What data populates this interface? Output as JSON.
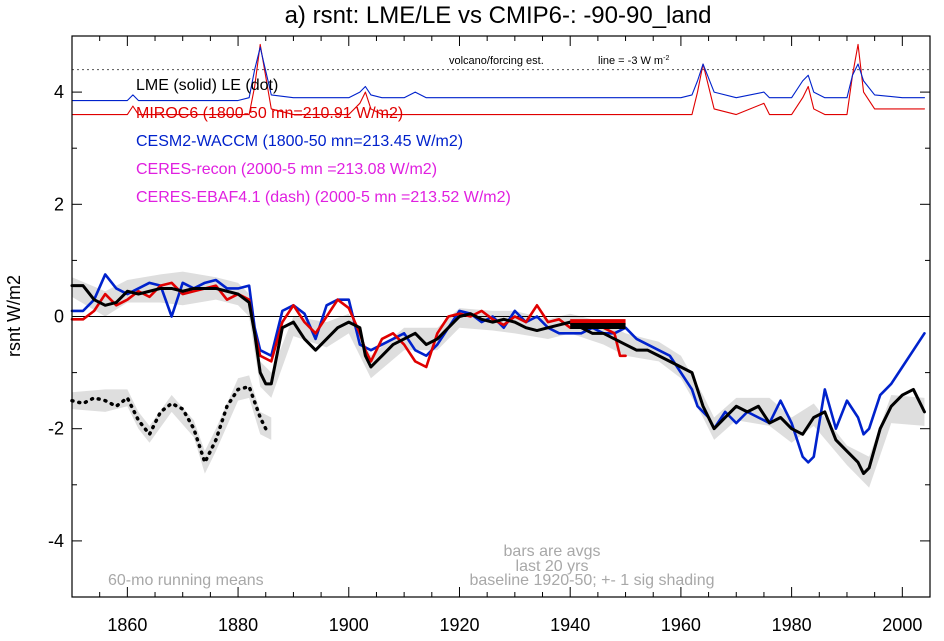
{
  "chart_data": {
    "type": "line",
    "title": "a) rsnt: LME/LE vs CMIP6-: -90-90_land",
    "ylabel": "rsnt W/m2",
    "xlabel": "",
    "xlim": [
      1850,
      2005
    ],
    "ylim": [
      -5,
      5
    ],
    "x_ticks": [
      1860,
      1880,
      1900,
      1920,
      1940,
      1960,
      1980,
      2000
    ],
    "y_ticks": [
      -4,
      -2,
      0,
      2,
      4
    ],
    "zero_line": 0,
    "reference_line": {
      "y": 4.4,
      "style": "dotted"
    },
    "legend": [
      {
        "text": "LME (solid)   LE (dot)",
        "color": "#000000"
      },
      {
        "text": "MIROC6 (1800-50 mn=210.91 W/m2)",
        "color": "#e00000"
      },
      {
        "text": "CESM2-WACCM (1800-50 mn=213.45 W/m2)",
        "color": "#0022cc"
      },
      {
        "text": "CERES-recon (2000-5 mn =213.08 W/m2)",
        "color": "#e020e0"
      },
      {
        "text": "CERES-EBAF4.1 (dash) (2000-5 mn =213.52 W/m2)",
        "color": "#e020e0"
      }
    ],
    "annotations": {
      "volcano": "volcano/forcing est.",
      "line_note": "line = -3 W m",
      "line_note_sup": "-2",
      "running": "60-mo running means",
      "bars1": "bars are avgs",
      "bars2": "last 20 yrs",
      "baseline": "baseline 1920-50; +- 1 sig shading"
    },
    "colors": {
      "lme": "#000000",
      "miroc": "#e00000",
      "cesm": "#0022cc",
      "ceres": "#e020e0",
      "shade": "#cccccc",
      "annot": "#a8a8a8"
    },
    "series": [
      {
        "name": "LME (solid)",
        "color": "#000000",
        "x": [
          1850,
          1852,
          1854,
          1856,
          1858,
          1860,
          1862,
          1864,
          1866,
          1868,
          1870,
          1872,
          1874,
          1876,
          1878,
          1880,
          1882,
          1883,
          1884,
          1885,
          1886,
          1888,
          1890,
          1892,
          1894,
          1896,
          1898,
          1900,
          1902,
          1903,
          1904,
          1906,
          1908,
          1910,
          1912,
          1914,
          1916,
          1918,
          1920,
          1922,
          1924,
          1926,
          1928,
          1930,
          1932,
          1934,
          1936,
          1938,
          1940,
          1942,
          1944,
          1946,
          1948,
          1950,
          1952,
          1954,
          1956,
          1958,
          1960,
          1962,
          1963,
          1964,
          1965,
          1966,
          1968,
          1970,
          1972,
          1974,
          1976,
          1978,
          1980,
          1982,
          1984,
          1986,
          1988,
          1990,
          1992,
          1993,
          1994,
          1996,
          1998,
          2000,
          2002,
          2004
        ],
        "y": [
          0.55,
          0.55,
          0.3,
          0.2,
          0.25,
          0.45,
          0.4,
          0.45,
          0.5,
          0.5,
          0.45,
          0.5,
          0.5,
          0.5,
          0.45,
          0.4,
          0.25,
          -0.3,
          -1.0,
          -1.2,
          -1.2,
          -0.2,
          -0.1,
          -0.4,
          -0.6,
          -0.4,
          -0.2,
          -0.1,
          -0.2,
          -0.7,
          -0.9,
          -0.7,
          -0.5,
          -0.4,
          -0.3,
          -0.5,
          -0.4,
          -0.2,
          0.0,
          0.05,
          -0.05,
          -0.1,
          -0.05,
          -0.1,
          -0.2,
          -0.25,
          -0.2,
          -0.15,
          -0.1,
          -0.2,
          -0.3,
          -0.3,
          -0.4,
          -0.5,
          -0.6,
          -0.6,
          -0.7,
          -0.8,
          -0.9,
          -1.0,
          -1.3,
          -1.6,
          -1.8,
          -2.0,
          -1.8,
          -1.6,
          -1.7,
          -1.6,
          -1.9,
          -1.8,
          -2.0,
          -2.1,
          -1.8,
          -1.7,
          -2.2,
          -2.4,
          -2.6,
          -2.8,
          -2.7,
          -2.0,
          -1.6,
          -1.4,
          -1.3,
          -1.7
        ]
      },
      {
        "name": "LE (dot)",
        "color": "#000000",
        "x": [
          1850,
          1852,
          1854,
          1856,
          1858,
          1860,
          1862,
          1864,
          1866,
          1868,
          1870,
          1872,
          1874,
          1876,
          1878,
          1880,
          1882,
          1884,
          1885
        ],
        "y": [
          -1.5,
          -1.55,
          -1.45,
          -1.5,
          -1.6,
          -1.45,
          -1.85,
          -2.1,
          -1.7,
          -1.55,
          -1.65,
          -2.0,
          -2.6,
          -2.2,
          -1.6,
          -1.3,
          -1.25,
          -1.8,
          -2.0
        ]
      },
      {
        "name": "MIROC6 (1800-50 mn=210.91 W/m2)",
        "color": "#e00000",
        "x": [
          1850,
          1852,
          1854,
          1856,
          1858,
          1860,
          1862,
          1864,
          1866,
          1868,
          1870,
          1872,
          1874,
          1876,
          1878,
          1880,
          1882,
          1883,
          1884,
          1886,
          1888,
          1890,
          1892,
          1894,
          1896,
          1898,
          1900,
          1902,
          1903,
          1904,
          1906,
          1908,
          1910,
          1912,
          1914,
          1916,
          1918,
          1920,
          1922,
          1924,
          1926,
          1928,
          1930,
          1932,
          1934,
          1936,
          1938,
          1940,
          1942,
          1944,
          1946,
          1948,
          1949,
          1950
        ],
        "y": [
          -0.05,
          -0.05,
          0.1,
          0.4,
          0.2,
          0.3,
          0.45,
          0.35,
          0.55,
          0.6,
          0.4,
          0.45,
          0.5,
          0.55,
          0.3,
          0.4,
          0.3,
          -0.3,
          -0.7,
          -0.8,
          -0.1,
          0.2,
          -0.1,
          -0.3,
          0.0,
          0.3,
          0.15,
          -0.3,
          -0.6,
          -0.8,
          -0.4,
          -0.3,
          -0.5,
          -0.8,
          -0.9,
          -0.3,
          0.0,
          0.05,
          0.0,
          0.1,
          -0.05,
          -0.15,
          0.0,
          -0.1,
          0.2,
          -0.1,
          -0.05,
          -0.2,
          -0.1,
          -0.2,
          -0.2,
          -0.3,
          -0.7,
          -0.7
        ]
      },
      {
        "name": "CESM2-WACCM (1800-50 mn=213.45 W/m2)",
        "color": "#0022cc",
        "x": [
          1850,
          1852,
          1854,
          1856,
          1858,
          1860,
          1862,
          1864,
          1866,
          1868,
          1870,
          1872,
          1874,
          1876,
          1878,
          1880,
          1882,
          1883,
          1884,
          1886,
          1888,
          1890,
          1892,
          1894,
          1896,
          1898,
          1900,
          1902,
          1903,
          1904,
          1906,
          1908,
          1910,
          1912,
          1914,
          1916,
          1918,
          1920,
          1922,
          1924,
          1926,
          1928,
          1930,
          1932,
          1934,
          1936,
          1938,
          1940,
          1942,
          1944,
          1946,
          1948,
          1950,
          1952,
          1954,
          1956,
          1958,
          1960,
          1962,
          1963,
          1964,
          1965,
          1966,
          1968,
          1970,
          1972,
          1974,
          1976,
          1978,
          1980,
          1982,
          1983,
          1984,
          1986,
          1988,
          1990,
          1992,
          1993,
          1994,
          1996,
          1998,
          2000,
          2002,
          2004
        ],
        "y": [
          0.1,
          0.1,
          0.3,
          0.75,
          0.5,
          0.4,
          0.5,
          0.6,
          0.55,
          0.0,
          0.6,
          0.5,
          0.6,
          0.65,
          0.5,
          0.5,
          0.55,
          -0.2,
          -0.6,
          -0.7,
          0.1,
          0.2,
          0.05,
          -0.4,
          0.2,
          0.3,
          0.3,
          -0.5,
          -0.55,
          -0.6,
          -0.5,
          -0.4,
          -0.3,
          -0.6,
          -0.7,
          -0.5,
          -0.2,
          0.1,
          0.05,
          -0.1,
          0.0,
          -0.2,
          0.1,
          -0.1,
          0.0,
          -0.2,
          -0.3,
          -0.3,
          -0.3,
          -0.2,
          -0.3,
          -0.3,
          -0.2,
          -0.4,
          -0.5,
          -0.6,
          -0.7,
          -1.0,
          -1.3,
          -1.6,
          -1.7,
          -1.8,
          -2.0,
          -1.7,
          -1.9,
          -1.7,
          -1.8,
          -1.9,
          -1.5,
          -1.9,
          -2.5,
          -2.6,
          -2.5,
          -1.3,
          -2.0,
          -1.5,
          -1.8,
          -2.1,
          -2.0,
          -1.4,
          -1.2,
          -0.9,
          -0.6,
          -0.3
        ]
      },
      {
        "name": "MIROC6 forcing",
        "color": "#e00000",
        "x": [
          1850,
          1860,
          1861,
          1862,
          1870,
          1880,
          1882,
          1883,
          1884,
          1886,
          1890,
          1900,
          1902,
          1903,
          1904,
          1906,
          1910,
          1920,
          1940,
          1950,
          1960,
          1962,
          1963,
          1964,
          1966,
          1970,
          1975,
          1976,
          1977,
          1980,
          1982,
          1983,
          1984,
          1986,
          1990,
          1991,
          1992,
          1993,
          1995,
          2000,
          2004
        ],
        "y": [
          3.6,
          3.6,
          3.75,
          3.6,
          3.6,
          3.6,
          3.6,
          4.1,
          4.85,
          3.7,
          3.6,
          3.6,
          3.8,
          4.0,
          3.7,
          3.6,
          3.6,
          3.6,
          3.6,
          3.6,
          3.6,
          3.6,
          4.0,
          4.5,
          3.7,
          3.6,
          3.8,
          3.6,
          3.6,
          3.6,
          3.9,
          4.1,
          3.7,
          3.6,
          3.6,
          4.3,
          4.85,
          4.0,
          3.7,
          3.7,
          3.7
        ]
      },
      {
        "name": "CESM2 forcing",
        "color": "#0022cc",
        "x": [
          1850,
          1860,
          1861,
          1862,
          1870,
          1880,
          1882,
          1883,
          1884,
          1886,
          1890,
          1900,
          1902,
          1903,
          1904,
          1906,
          1910,
          1912,
          1914,
          1920,
          1930,
          1940,
          1950,
          1960,
          1962,
          1963,
          1964,
          1966,
          1970,
          1975,
          1976,
          1980,
          1982,
          1983,
          1984,
          1986,
          1990,
          1991,
          1992,
          1993,
          1995,
          2000,
          2004
        ],
        "y": [
          3.85,
          3.85,
          3.95,
          3.85,
          3.85,
          3.85,
          3.9,
          4.4,
          4.8,
          3.95,
          3.9,
          3.9,
          4.0,
          4.1,
          3.95,
          3.9,
          3.9,
          4.0,
          3.9,
          3.9,
          3.9,
          3.9,
          3.9,
          3.9,
          3.95,
          4.2,
          4.5,
          4.0,
          3.9,
          4.0,
          3.9,
          3.9,
          4.2,
          4.3,
          4.0,
          3.9,
          3.9,
          4.3,
          4.5,
          4.2,
          3.95,
          3.9,
          3.9
        ]
      }
    ],
    "shading": {
      "x": [
        1850,
        1856,
        1860,
        1866,
        1870,
        1876,
        1880,
        1882,
        1884,
        1886,
        1890,
        1896,
        1900,
        1904,
        1910,
        1916,
        1920,
        1926,
        1930,
        1936,
        1940,
        1946,
        1950,
        1956,
        1960,
        1964,
        1966,
        1970,
        1976,
        1980,
        1984,
        1990,
        1994,
        1998,
        2004
      ],
      "upper": [
        0.7,
        0.45,
        0.65,
        0.75,
        0.8,
        0.7,
        0.6,
        0.4,
        -0.8,
        -1.0,
        0.0,
        -0.1,
        0.05,
        -0.7,
        -0.2,
        -0.2,
        0.15,
        0.1,
        0.1,
        -0.05,
        0.05,
        -0.1,
        -0.3,
        -0.45,
        -0.7,
        -1.4,
        -1.8,
        -1.45,
        -1.45,
        -1.8,
        -1.55,
        -2.3,
        -2.5,
        -1.4,
        -1.45
      ],
      "lower": [
        0.35,
        0.0,
        0.25,
        0.25,
        0.2,
        0.3,
        0.2,
        0.0,
        -1.25,
        -1.45,
        -0.35,
        -0.55,
        -0.3,
        -1.1,
        -0.6,
        -0.6,
        -0.2,
        -0.25,
        -0.3,
        -0.4,
        -0.3,
        -0.5,
        -0.7,
        -0.8,
        -1.1,
        -1.8,
        -2.2,
        -1.85,
        -1.95,
        -2.25,
        -1.95,
        -2.65,
        -3.05,
        -1.9,
        -1.95
      ]
    },
    "le_shading": {
      "x": [
        1850,
        1856,
        1860,
        1862,
        1864,
        1868,
        1872,
        1874,
        1876,
        1880,
        1882,
        1884,
        1886
      ],
      "upper": [
        -1.35,
        -1.3,
        -1.3,
        -1.7,
        -1.95,
        -1.4,
        -1.85,
        -2.4,
        -2.0,
        -1.1,
        -1.05,
        -1.7,
        -1.8
      ],
      "lower": [
        -1.65,
        -1.7,
        -1.6,
        -2.0,
        -2.25,
        -1.7,
        -2.15,
        -2.8,
        -2.4,
        -1.5,
        -1.45,
        -2.1,
        -2.2
      ]
    },
    "bars": [
      {
        "x1": 1940,
        "x2": 1950,
        "y": -0.1,
        "color": "#e00000"
      },
      {
        "x1": 1940,
        "x2": 1950,
        "y": -0.17,
        "color": "#000000"
      }
    ]
  }
}
